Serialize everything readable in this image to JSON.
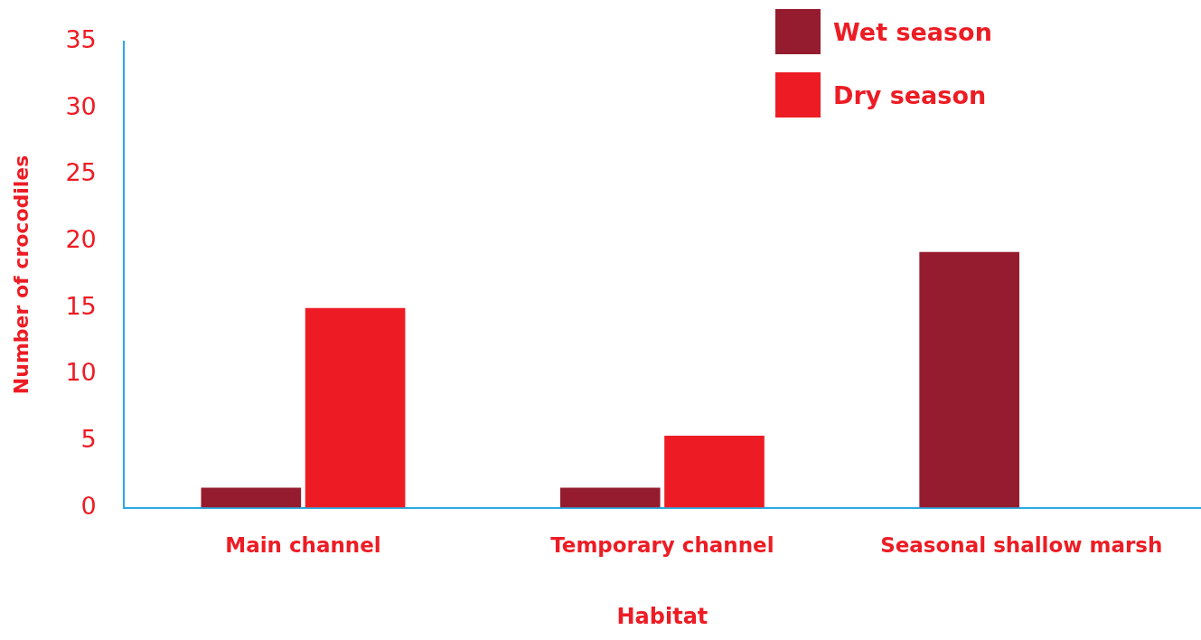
{
  "chart_data": {
    "type": "bar",
    "xlabel": "Habitat",
    "ylabel": "Number of crocodiles",
    "categories": [
      "Main channel",
      "Temporary channel",
      "Seasonal shallow marsh"
    ],
    "series": [
      {
        "name": "Wet season",
        "color": "#951c2f",
        "values": [
          1.5,
          1.5,
          19.2
        ]
      },
      {
        "name": "Dry season",
        "color": "#ed1c24",
        "values": [
          15,
          5.4,
          null
        ]
      }
    ],
    "ylim": [
      0,
      35
    ],
    "yticks": [
      0,
      5,
      10,
      15,
      20,
      25,
      30,
      35
    ],
    "grid": false,
    "legend": "top right"
  }
}
